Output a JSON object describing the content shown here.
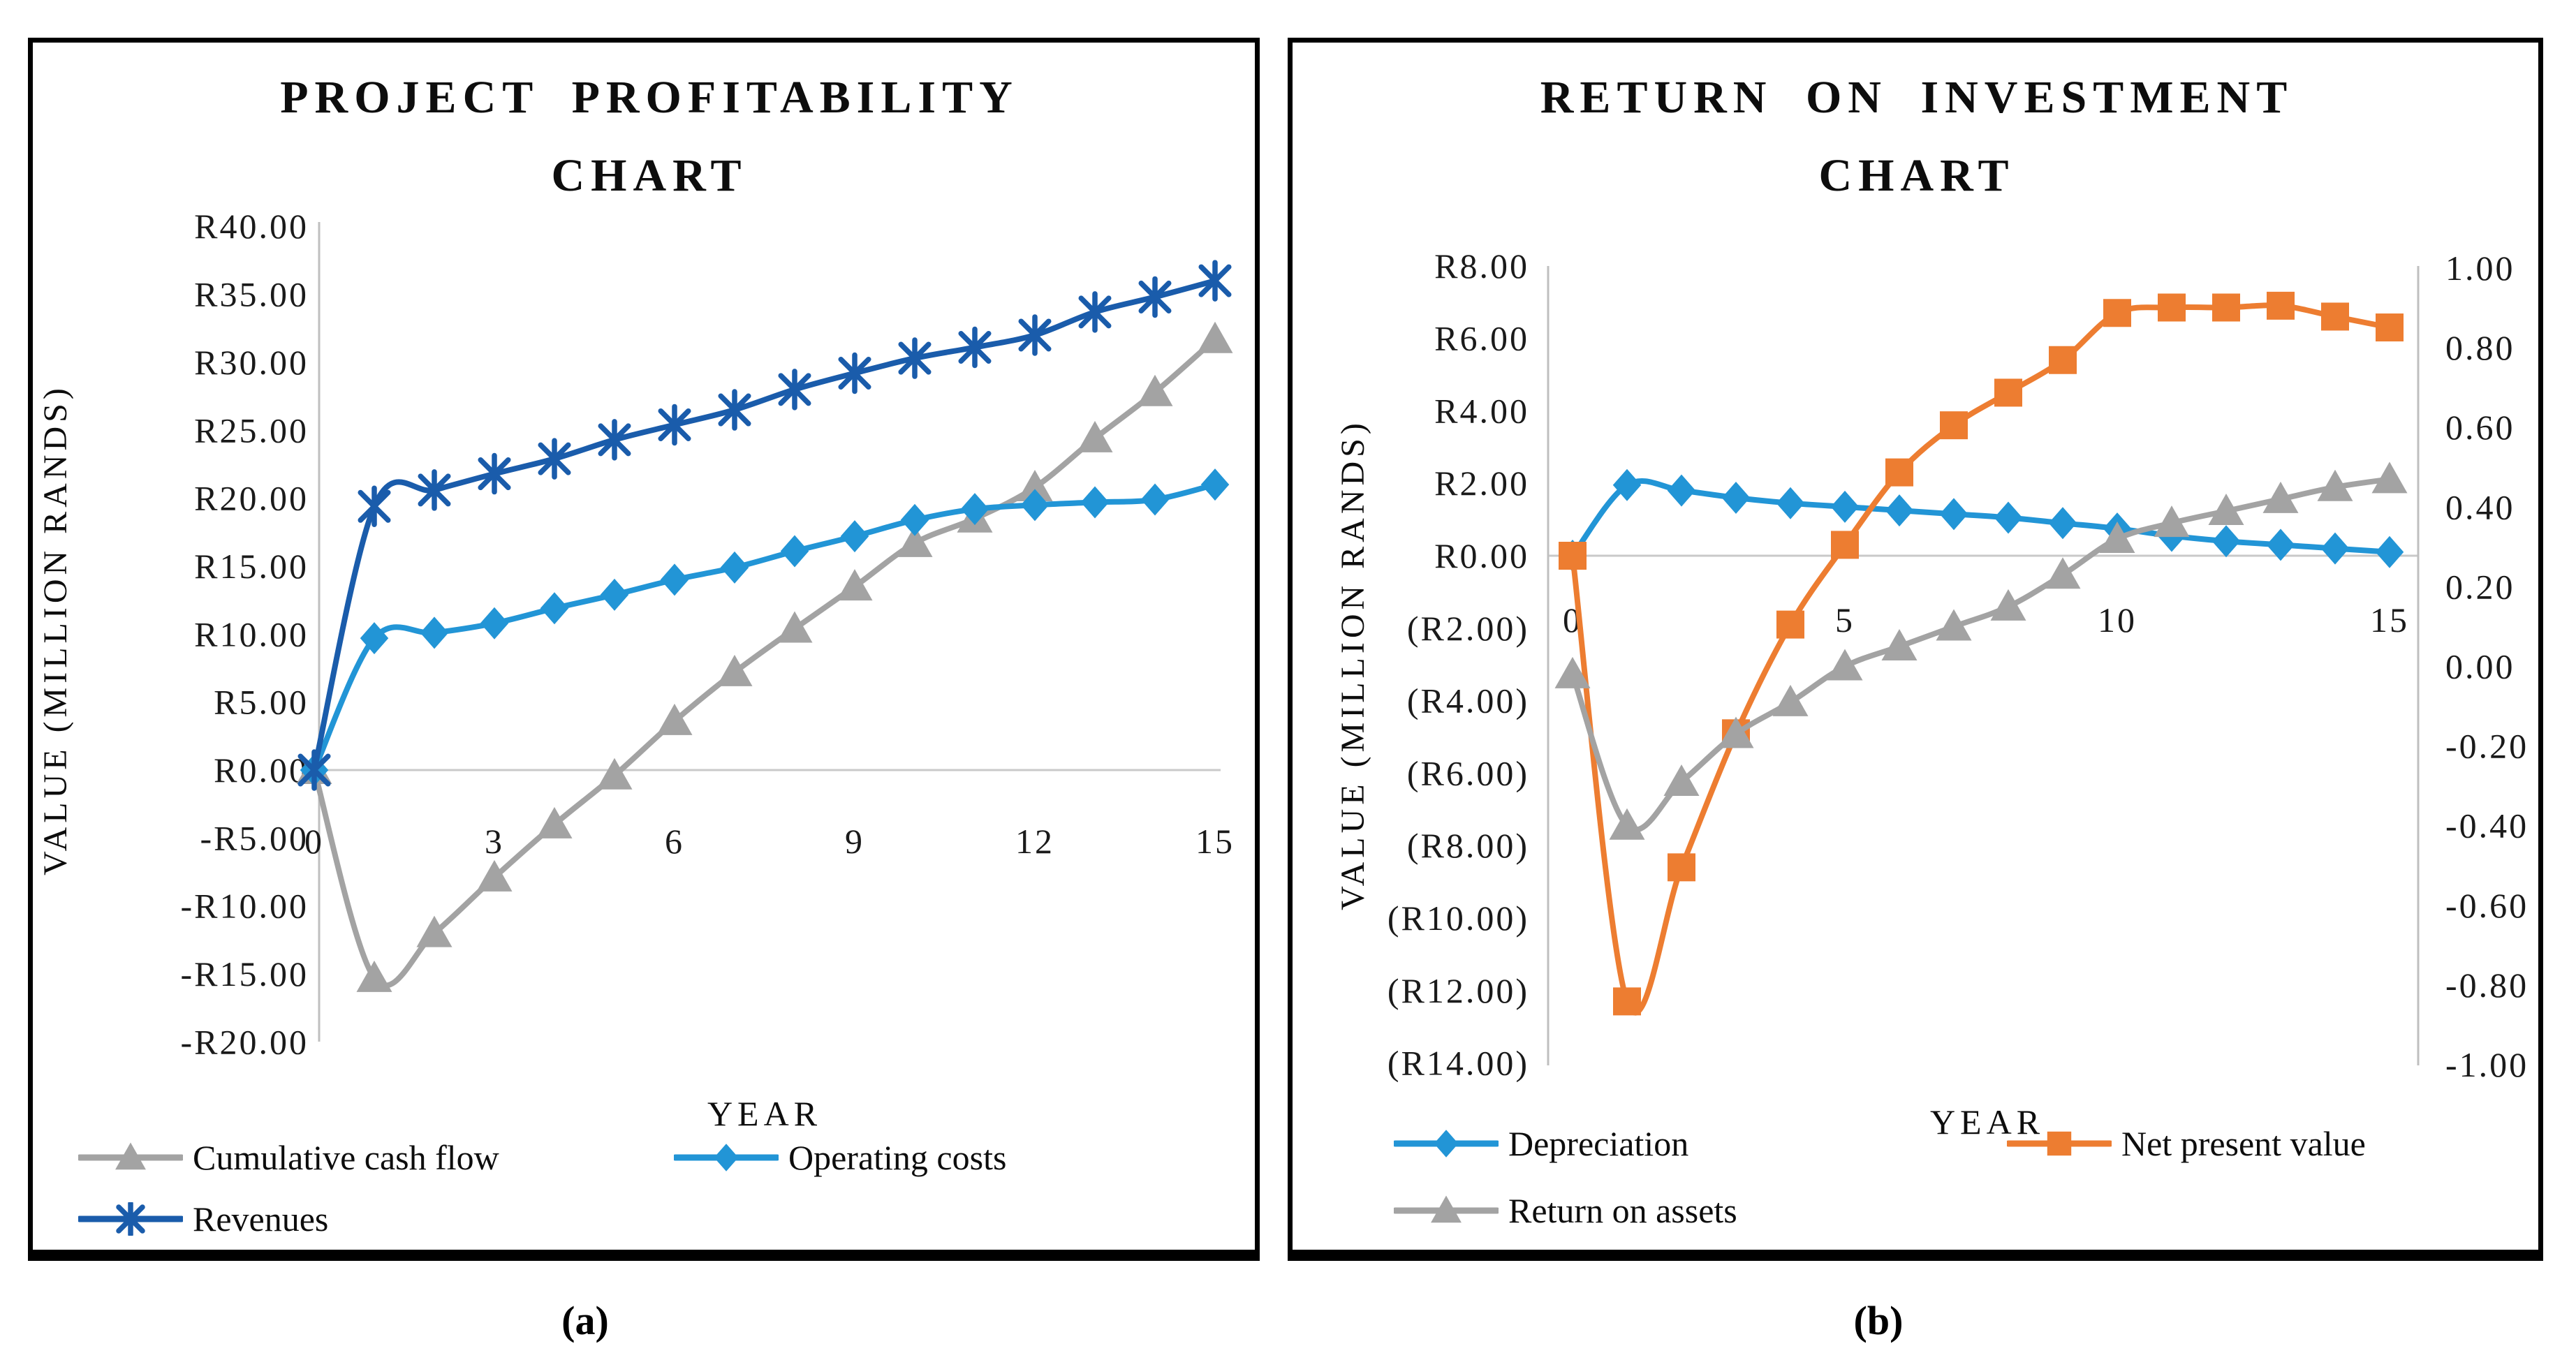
{
  "figure": {
    "background": "#ffffff",
    "captions": [
      {
        "text": "(a)"
      },
      {
        "text": "(b)"
      }
    ]
  },
  "chart_data": [
    {
      "type": "line",
      "panel": "a",
      "title": "PROJECT PROFITABILITY CHART",
      "title_lines": [
        "PROJECT PROFITABILITY",
        "CHART"
      ],
      "xlabel": "YEAR",
      "ylabel": "VALUE (MILLION RANDS)",
      "xlim": [
        0,
        15
      ],
      "ylim": [
        -20,
        40
      ],
      "grid": "zero-line-only",
      "legend_position": "bottom-left",
      "x": [
        0,
        1,
        2,
        3,
        4,
        5,
        6,
        7,
        8,
        9,
        10,
        11,
        12,
        13,
        14,
        15
      ],
      "x_ticks": [
        {
          "value": 0,
          "label": "0"
        },
        {
          "value": 3,
          "label": "3"
        },
        {
          "value": 6,
          "label": "6"
        },
        {
          "value": 9,
          "label": "9"
        },
        {
          "value": 12,
          "label": "12"
        },
        {
          "value": 15,
          "label": "15"
        }
      ],
      "y_ticks": [
        {
          "value": 40,
          "label": "R40.00"
        },
        {
          "value": 35,
          "label": "R35.00"
        },
        {
          "value": 30,
          "label": "R30.00"
        },
        {
          "value": 25,
          "label": "R25.00"
        },
        {
          "value": 20,
          "label": "R20.00"
        },
        {
          "value": 15,
          "label": "R15.00"
        },
        {
          "value": 10,
          "label": "R10.00"
        },
        {
          "value": 5,
          "label": "R5.00"
        },
        {
          "value": 0,
          "label": "R0.00"
        },
        {
          "value": -5,
          "label": "-R5.00"
        },
        {
          "value": -10,
          "label": "-R10.00"
        },
        {
          "value": -15,
          "label": "-R15.00"
        },
        {
          "value": -20,
          "label": "-R20.00"
        }
      ],
      "series": [
        {
          "name": "Cumulative cash flow",
          "marker": "triangle",
          "color": "#A3A3A3",
          "axis": "left",
          "values": [
            0,
            -15.3,
            -12.0,
            -7.9,
            -4.0,
            -0.4,
            3.6,
            7.2,
            10.4,
            13.5,
            16.7,
            18.5,
            20.8,
            24.4,
            27.8,
            31.7
          ]
        },
        {
          "name": "Operating costs",
          "marker": "diamond",
          "color": "#2295D6",
          "axis": "left",
          "values": [
            0,
            9.7,
            10.1,
            10.8,
            11.9,
            12.9,
            14.0,
            14.9,
            16.1,
            17.2,
            18.4,
            19.2,
            19.5,
            19.7,
            19.9,
            21.0
          ]
        },
        {
          "name": "Revenues",
          "marker": "asterisk",
          "color": "#1A5CAB",
          "axis": "left",
          "values": [
            0,
            19.4,
            20.6,
            21.8,
            22.9,
            24.3,
            25.4,
            26.5,
            28.0,
            29.2,
            30.3,
            31.1,
            32.0,
            33.7,
            34.8,
            36.0
          ]
        }
      ]
    },
    {
      "type": "line",
      "panel": "b",
      "title": "RETURN ON INVESTMENT CHART",
      "title_lines": [
        "RETURN ON INVESTMENT",
        "CHART"
      ],
      "xlabel": "YEAR",
      "ylabel": "VALUE (MILLION RANDS)",
      "xlim": [
        0,
        15
      ],
      "ylim_left": [
        -14,
        8
      ],
      "ylim_right": [
        -1,
        1
      ],
      "grid": "zero-line-only",
      "legend_position": "bottom-left",
      "x": [
        0,
        1,
        2,
        3,
        4,
        5,
        6,
        7,
        8,
        9,
        10,
        11,
        12,
        13,
        14,
        15
      ],
      "x_ticks": [
        {
          "value": 0,
          "label": "0"
        },
        {
          "value": 5,
          "label": "5"
        },
        {
          "value": 10,
          "label": "10"
        },
        {
          "value": 15,
          "label": "15"
        }
      ],
      "y_ticks_left": [
        {
          "value": 8,
          "label": "R8.00"
        },
        {
          "value": 6,
          "label": "R6.00"
        },
        {
          "value": 4,
          "label": "R4.00"
        },
        {
          "value": 2,
          "label": "R2.00"
        },
        {
          "value": 0,
          "label": "R0.00"
        },
        {
          "value": -2,
          "label": "(R2.00)"
        },
        {
          "value": -4,
          "label": "(R4.00)"
        },
        {
          "value": -6,
          "label": "(R6.00)"
        },
        {
          "value": -8,
          "label": "(R8.00)"
        },
        {
          "value": -10,
          "label": "(R10.00)"
        },
        {
          "value": -12,
          "label": "(R12.00)"
        },
        {
          "value": -14,
          "label": "(R14.00)"
        }
      ],
      "y_ticks_right": [
        {
          "value": 1.0,
          "label": "1.00"
        },
        {
          "value": 0.8,
          "label": "0.80"
        },
        {
          "value": 0.6,
          "label": "0.60"
        },
        {
          "value": 0.4,
          "label": "0.40"
        },
        {
          "value": 0.2,
          "label": "0.20"
        },
        {
          "value": 0.0,
          "label": "0.00"
        },
        {
          "value": -0.2,
          "label": "-0.20"
        },
        {
          "value": -0.4,
          "label": "-0.40"
        },
        {
          "value": -0.6,
          "label": "-0.60"
        },
        {
          "value": -0.8,
          "label": "-0.80"
        },
        {
          "value": -1.0,
          "label": "-1.00"
        }
      ],
      "series": [
        {
          "name": "Depreciation",
          "marker": "diamond",
          "color": "#2295D6",
          "axis": "left",
          "values": [
            0,
            1.95,
            1.8,
            1.6,
            1.45,
            1.35,
            1.25,
            1.15,
            1.05,
            0.9,
            0.75,
            0.55,
            0.4,
            0.3,
            0.2,
            0.1
          ]
        },
        {
          "name": "Net present value",
          "marker": "square",
          "color": "#ED7D31",
          "axis": "left",
          "values": [
            0,
            -12.3,
            -8.6,
            -4.9,
            -1.9,
            0.3,
            2.3,
            3.6,
            4.5,
            5.4,
            6.7,
            6.85,
            6.85,
            6.9,
            6.6,
            6.3
          ]
        },
        {
          "name": "Return on assets",
          "marker": "triangle",
          "color": "#A3A3A3",
          "axis": "right",
          "values": [
            -0.02,
            -0.4,
            -0.29,
            -0.17,
            -0.09,
            0.0,
            0.05,
            0.1,
            0.15,
            0.23,
            0.32,
            0.36,
            0.39,
            0.42,
            0.45,
            0.47
          ]
        }
      ]
    }
  ]
}
